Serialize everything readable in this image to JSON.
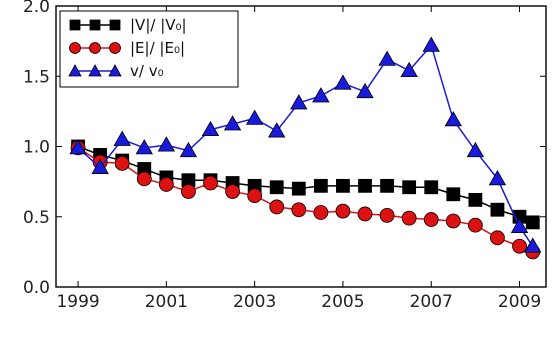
{
  "chart_data": {
    "type": "line",
    "title": "",
    "xlabel": "",
    "ylabel": "",
    "xlim": [
      1998.5,
      2009.6
    ],
    "ylim": [
      0.0,
      2.0
    ],
    "x_ticks": [
      1999,
      2001,
      2003,
      2005,
      2007,
      2009
    ],
    "x_tick_labels": [
      "1999",
      "2001",
      "2003",
      "2005",
      "2007",
      "2009"
    ],
    "y_ticks": [
      0.0,
      0.5,
      1.0,
      1.5,
      2.0
    ],
    "y_tick_labels": [
      "0.0",
      "0.5",
      "1.0",
      "1.5",
      "2.0"
    ],
    "grid": false,
    "legend_position": "top-left",
    "series": [
      {
        "name": "|V|/ |V₀|",
        "color": "#000000",
        "marker": "square",
        "points": [
          [
            1999.0,
            1.0
          ],
          [
            1999.5,
            0.94
          ],
          [
            2000.0,
            0.9
          ],
          [
            2000.5,
            0.84
          ],
          [
            2001.0,
            0.78
          ],
          [
            2001.5,
            0.76
          ],
          [
            2002.0,
            0.76
          ],
          [
            2002.5,
            0.74
          ],
          [
            2003.0,
            0.72
          ],
          [
            2003.5,
            0.71
          ],
          [
            2004.0,
            0.7
          ],
          [
            2004.5,
            0.72
          ],
          [
            2005.0,
            0.72
          ],
          [
            2005.5,
            0.72
          ],
          [
            2006.0,
            0.72
          ],
          [
            2006.5,
            0.71
          ],
          [
            2007.0,
            0.71
          ],
          [
            2007.5,
            0.66
          ],
          [
            2008.0,
            0.62
          ],
          [
            2008.5,
            0.55
          ],
          [
            2009.0,
            0.5
          ],
          [
            2009.3,
            0.46
          ]
        ]
      },
      {
        "name": "|E|/ |E₀|",
        "color": "#dd1111",
        "marker": "circle",
        "points": [
          [
            1999.0,
            0.99
          ],
          [
            1999.5,
            0.89
          ],
          [
            2000.0,
            0.88
          ],
          [
            2000.5,
            0.77
          ],
          [
            2001.0,
            0.73
          ],
          [
            2001.5,
            0.68
          ],
          [
            2002.0,
            0.74
          ],
          [
            2002.5,
            0.68
          ],
          [
            2003.0,
            0.65
          ],
          [
            2003.5,
            0.57
          ],
          [
            2004.0,
            0.55
          ],
          [
            2004.5,
            0.53
          ],
          [
            2005.0,
            0.54
          ],
          [
            2005.5,
            0.52
          ],
          [
            2006.0,
            0.51
          ],
          [
            2006.5,
            0.49
          ],
          [
            2007.0,
            0.48
          ],
          [
            2007.5,
            0.47
          ],
          [
            2008.0,
            0.44
          ],
          [
            2008.5,
            0.35
          ],
          [
            2009.0,
            0.29
          ],
          [
            2009.3,
            0.25
          ]
        ]
      },
      {
        "name": "v/ v₀",
        "color": "#1a1add",
        "marker": "triangle",
        "points": [
          [
            1999.0,
            0.99
          ],
          [
            1999.5,
            0.85
          ],
          [
            2000.0,
            1.05
          ],
          [
            2000.5,
            0.99
          ],
          [
            2001.0,
            1.01
          ],
          [
            2001.5,
            0.97
          ],
          [
            2002.0,
            1.12
          ],
          [
            2002.5,
            1.16
          ],
          [
            2003.0,
            1.2
          ],
          [
            2003.5,
            1.11
          ],
          [
            2004.0,
            1.31
          ],
          [
            2004.5,
            1.36
          ],
          [
            2005.0,
            1.45
          ],
          [
            2005.5,
            1.39
          ],
          [
            2006.0,
            1.62
          ],
          [
            2006.5,
            1.54
          ],
          [
            2007.0,
            1.72
          ],
          [
            2007.5,
            1.19
          ],
          [
            2008.0,
            0.97
          ],
          [
            2008.5,
            0.77
          ],
          [
            2009.0,
            0.43
          ],
          [
            2009.3,
            0.29
          ]
        ]
      }
    ]
  }
}
